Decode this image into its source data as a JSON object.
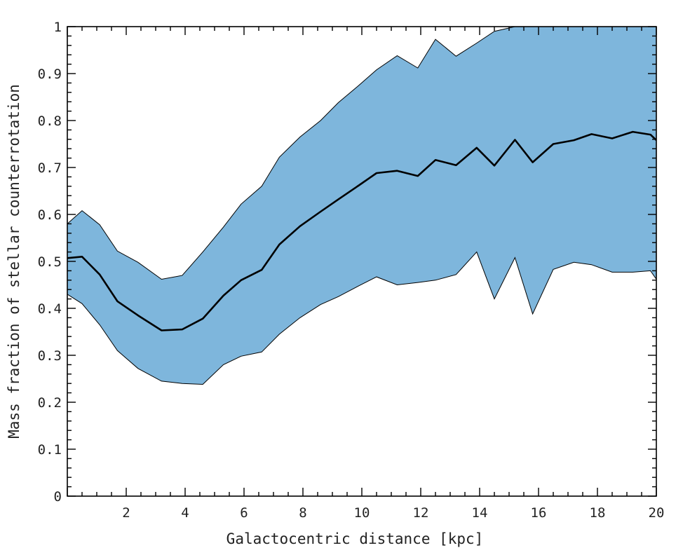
{
  "chart_data": {
    "type": "area",
    "title": "",
    "xlabel": "Galactocentric distance [kpc]",
    "ylabel": "Mass fraction of stellar counterrotation",
    "xlim": [
      0,
      20
    ],
    "ylim": [
      0,
      1
    ],
    "x_ticks": [
      2,
      4,
      6,
      8,
      10,
      12,
      14,
      16,
      18,
      20
    ],
    "y_ticks": [
      0,
      0.1,
      0.2,
      0.3,
      0.4,
      0.5,
      0.6,
      0.7,
      0.8,
      0.9,
      1
    ],
    "x_tick_labels": [
      "2",
      "4",
      "6",
      "8",
      "10",
      "12",
      "14",
      "16",
      "18",
      "20"
    ],
    "y_tick_labels": [
      "0",
      "0.1",
      "0.2",
      "0.3",
      "0.4",
      "0.5",
      "0.6",
      "0.7",
      "0.8",
      "0.9",
      "1"
    ],
    "grid": false,
    "colors": {
      "band": "#7eb6dc",
      "line": "#000000",
      "axes": "#000000"
    },
    "x": [
      0,
      0.5,
      1.1,
      1.7,
      2.4,
      3.2,
      3.9,
      4.6,
      5.3,
      5.9,
      6.6,
      7.2,
      7.9,
      8.6,
      9.2,
      9.9,
      10.5,
      11.2,
      11.9,
      12.5,
      13.2,
      13.9,
      14.5,
      15.2,
      15.8,
      16.5,
      17.2,
      17.8,
      18.5,
      19.2,
      19.8,
      20
    ],
    "series": [
      {
        "role": "median",
        "values": [
          0.507,
          0.51,
          0.472,
          0.415,
          0.385,
          0.353,
          0.355,
          0.378,
          0.427,
          0.46,
          0.482,
          0.536,
          0.575,
          0.606,
          0.632,
          0.662,
          0.688,
          0.693,
          0.682,
          0.716,
          0.705,
          0.742,
          0.704,
          0.759,
          0.711,
          0.75,
          0.758,
          0.771,
          0.762,
          0.776,
          0.77,
          0.758
        ]
      },
      {
        "role": "upper",
        "values": [
          0.58,
          0.608,
          0.578,
          0.522,
          0.498,
          0.462,
          0.47,
          0.52,
          0.573,
          0.622,
          0.66,
          0.722,
          0.765,
          0.8,
          0.838,
          0.875,
          0.908,
          0.938,
          0.912,
          0.973,
          0.937,
          0.965,
          0.99,
          1.0,
          1.0,
          1.0,
          1.0,
          1.0,
          1.0,
          1.0,
          1.0,
          1.0
        ]
      },
      {
        "role": "lower",
        "values": [
          0.43,
          0.41,
          0.365,
          0.31,
          0.272,
          0.245,
          0.24,
          0.238,
          0.28,
          0.298,
          0.307,
          0.345,
          0.38,
          0.408,
          0.425,
          0.448,
          0.467,
          0.45,
          0.455,
          0.46,
          0.472,
          0.52,
          0.42,
          0.508,
          0.388,
          0.483,
          0.498,
          0.493,
          0.477,
          0.477,
          0.48,
          0.462
        ]
      }
    ]
  }
}
